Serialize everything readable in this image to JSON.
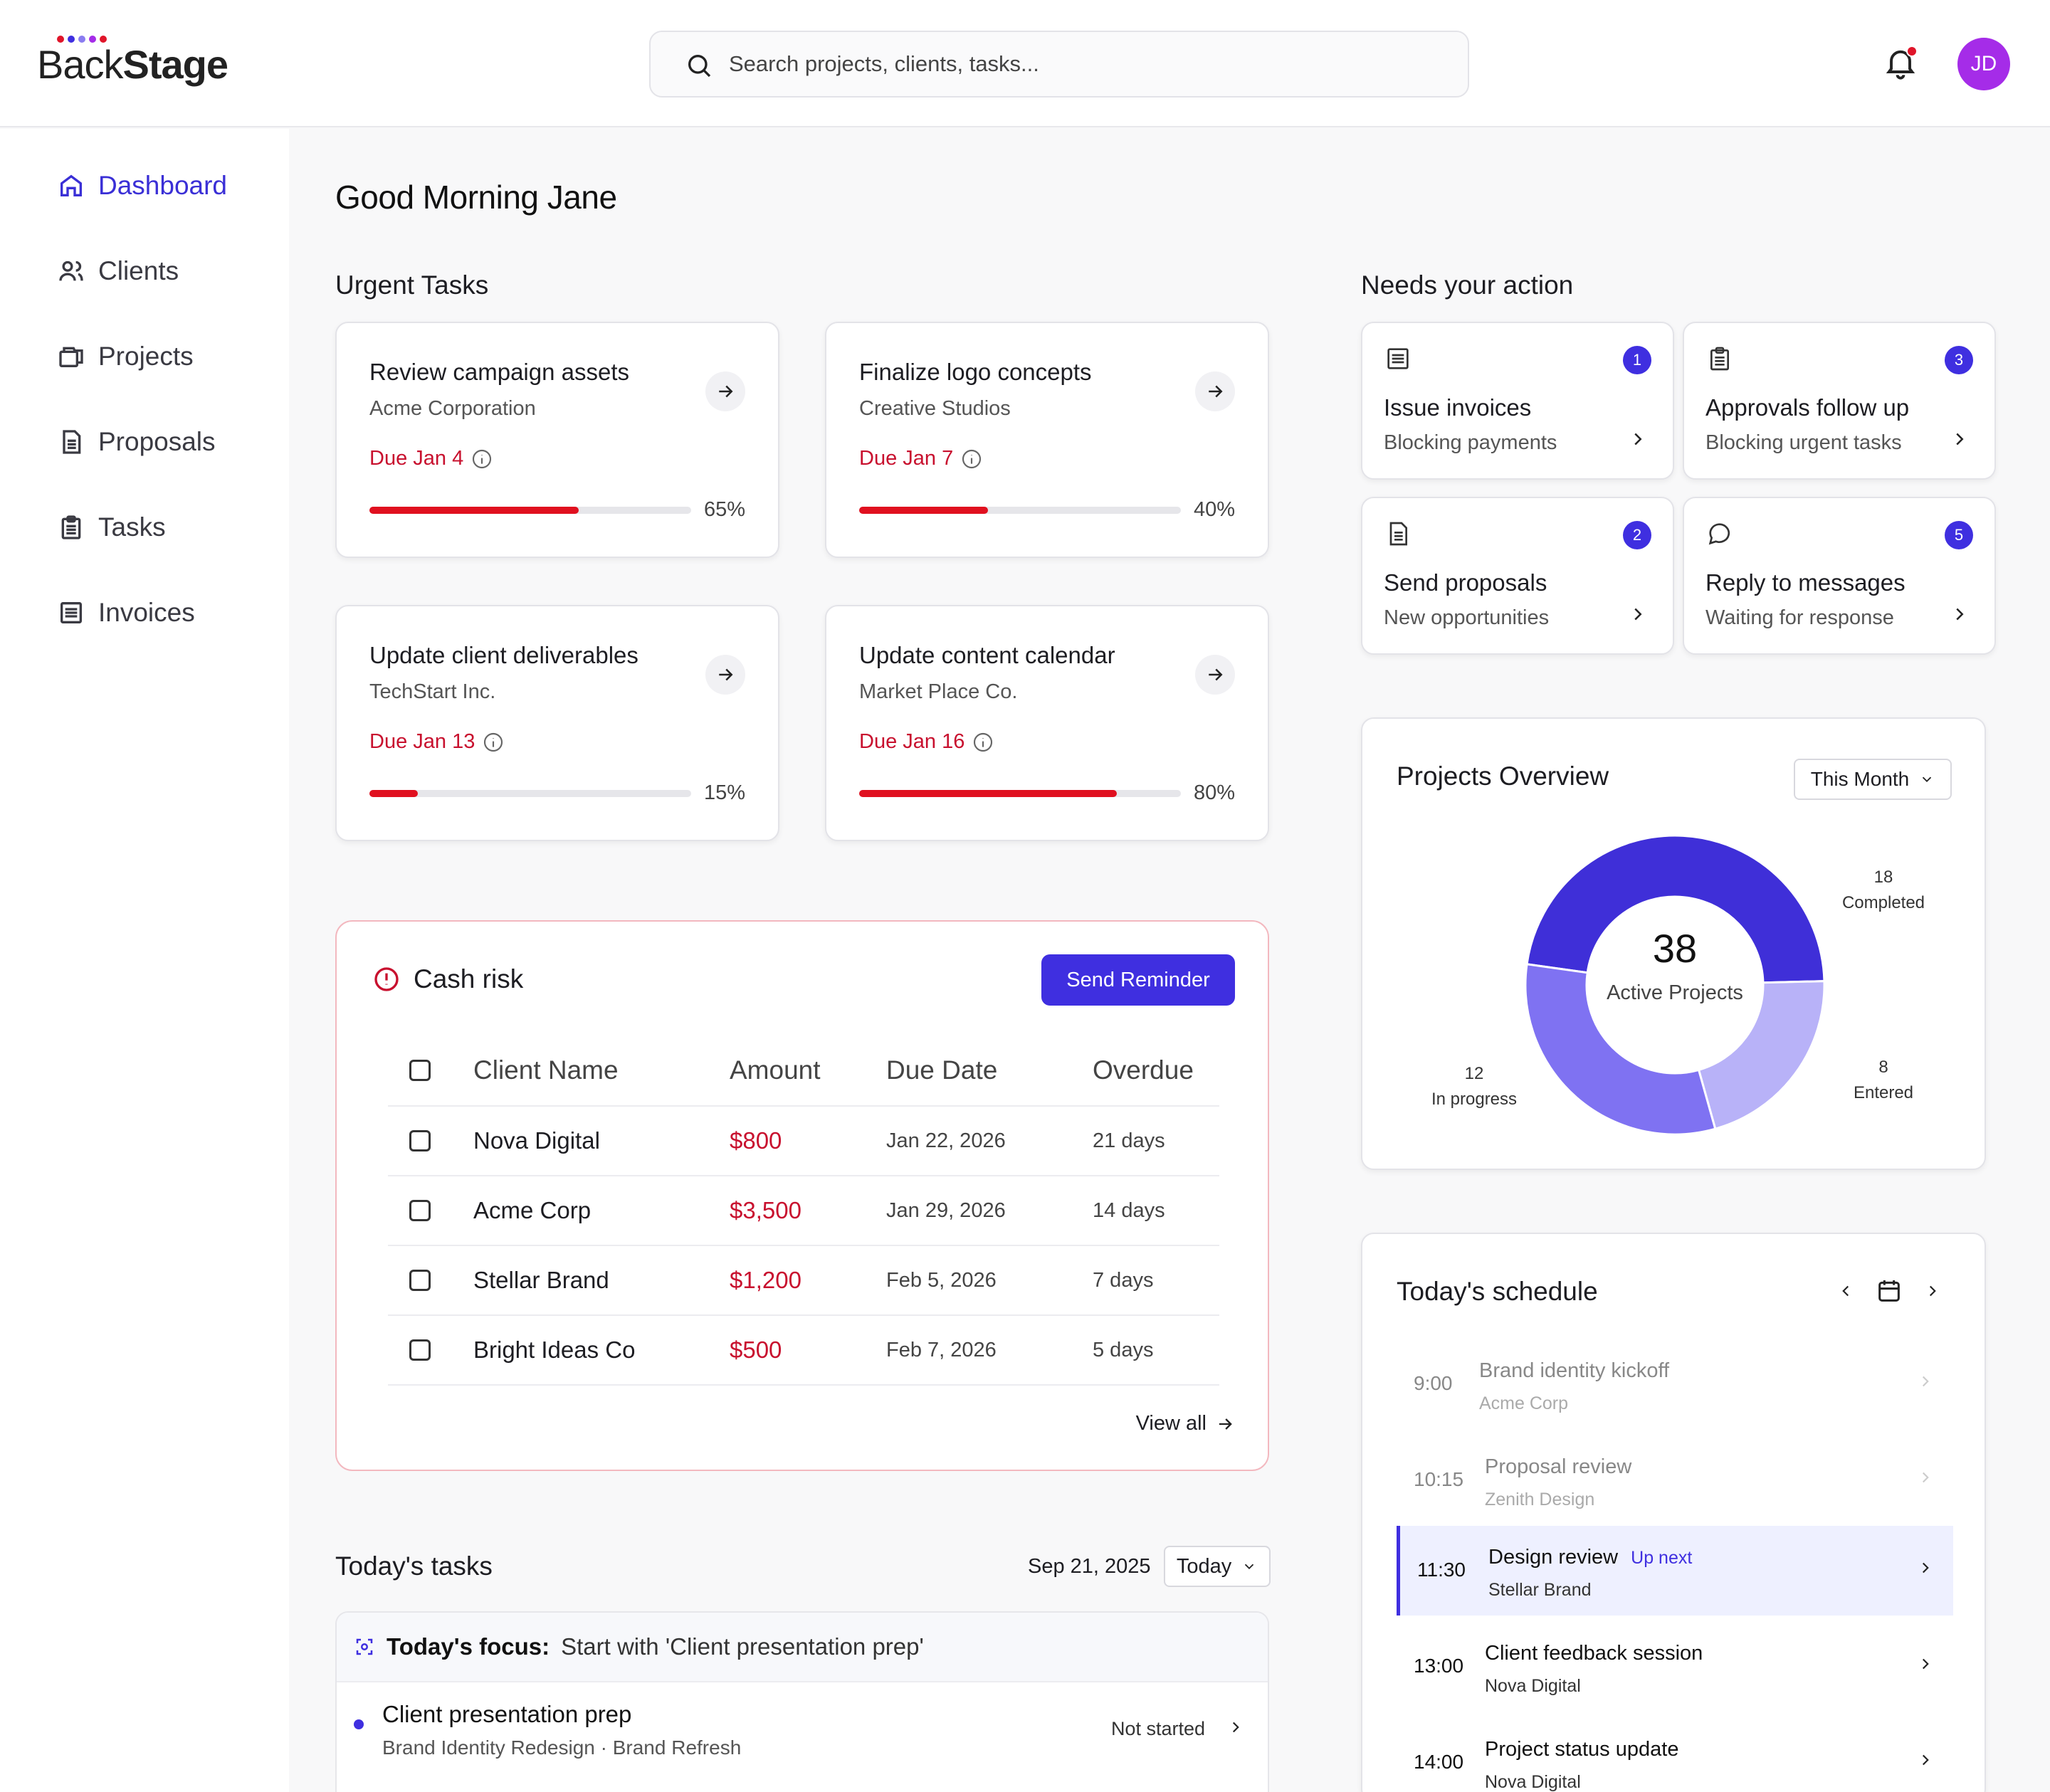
{
  "app": {
    "logo_a": "Back",
    "logo_b": "Stage",
    "logo_dot_colors": [
      "#e0152a",
      "#3f2fe0",
      "#8a7cf0",
      "#a52ce8",
      "#e0152a"
    ]
  },
  "search": {
    "placeholder": "Search projects, clients, tasks..."
  },
  "user": {
    "initials": "JD",
    "avatar_color": "#a52ce8"
  },
  "sidebar": {
    "items": [
      {
        "label": "Dashboard",
        "icon": "home-icon",
        "active": true
      },
      {
        "label": "Clients",
        "icon": "users-icon"
      },
      {
        "label": "Projects",
        "icon": "folders-icon"
      },
      {
        "label": "Proposals",
        "icon": "document-icon"
      },
      {
        "label": "Tasks",
        "icon": "clipboard-icon"
      },
      {
        "label": "Invoices",
        "icon": "list-icon"
      }
    ]
  },
  "greeting": "Good Morning Jane",
  "urgent": {
    "title": "Urgent Tasks",
    "tasks": [
      {
        "title": "Review campaign assets",
        "client": "Acme Corporation",
        "due": "Due Jan 4",
        "progress": 65,
        "pct": "65%"
      },
      {
        "title": "Finalize logo concepts",
        "client": "Creative Studios",
        "due": "Due Jan 7",
        "progress": 40,
        "pct": "40%"
      },
      {
        "title": "Update client deliverables",
        "client": "TechStart Inc.",
        "due": "Due Jan 13",
        "progress": 15,
        "pct": "15%"
      },
      {
        "title": "Update content calendar",
        "client": "Market Place Co.",
        "due": "Due Jan 16",
        "progress": 80,
        "pct": "80%"
      }
    ]
  },
  "actions": {
    "title": "Needs your action",
    "items": [
      {
        "title": "Issue invoices",
        "sub": "Blocking payments",
        "count": "1",
        "icon": "list-icon"
      },
      {
        "title": "Approvals follow up",
        "sub": "Blocking urgent tasks",
        "count": "3",
        "icon": "clipboard-icon"
      },
      {
        "title": "Send proposals",
        "sub": "New opportunities",
        "count": "2",
        "icon": "document-icon"
      },
      {
        "title": "Reply to messages",
        "sub": "Waiting for response",
        "count": "5",
        "icon": "chat-bubble-icon"
      }
    ]
  },
  "cash": {
    "title": "Cash risk",
    "button": "Send Reminder",
    "view_all": "View all",
    "columns": [
      "Client Name",
      "Amount",
      "Due Date",
      "Overdue"
    ],
    "rows": [
      {
        "client": "Nova Digital",
        "amount": "$800",
        "due": "Jan 22, 2026",
        "overdue": "21 days"
      },
      {
        "client": "Acme Corp",
        "amount": "$3,500",
        "due": "Jan 29, 2026",
        "overdue": "14 days"
      },
      {
        "client": "Stellar Brand",
        "amount": "$1,200",
        "due": "Feb 5, 2026",
        "overdue": "7 days"
      },
      {
        "client": "Bright Ideas Co",
        "amount": "$500",
        "due": "Feb 7, 2026",
        "overdue": "5 days"
      }
    ]
  },
  "overview": {
    "title": "Projects Overview",
    "period": "This Month",
    "center_value": "38",
    "center_label": "Active Projects",
    "segments": [
      {
        "label": "Completed",
        "value": 18,
        "color": "#3f2fd8"
      },
      {
        "label": "Entered",
        "value": 8,
        "color": "#b8b2f8"
      },
      {
        "label": "In progress",
        "value": 12,
        "color": "#7f72f2"
      }
    ]
  },
  "schedule": {
    "title": "Today's schedule",
    "events": [
      {
        "time": "9:00",
        "title": "Brand identity kickoff",
        "client": "Acme Corp",
        "state": "past"
      },
      {
        "time": "10:15",
        "title": "Proposal review",
        "client": "Zenith Design",
        "state": "past"
      },
      {
        "time": "11:30",
        "title": "Design review",
        "client": "Stellar Brand",
        "state": "now",
        "tag": "Up next"
      },
      {
        "time": "13:00",
        "title": "Client feedback session",
        "client": "Nova Digital",
        "state": "future"
      },
      {
        "time": "14:00",
        "title": "Project status update",
        "client": "Nova Digital",
        "state": "future"
      }
    ]
  },
  "todays_tasks": {
    "title": "Today's tasks",
    "date": "Sep 21, 2025",
    "range": "Today",
    "focus_label": "Today's focus:",
    "focus_text": "Start with 'Client presentation prep'",
    "items": [
      {
        "title": "Client presentation prep",
        "sub": "Brand Identity Redesign · Brand Refresh",
        "status": "Not started"
      }
    ]
  }
}
